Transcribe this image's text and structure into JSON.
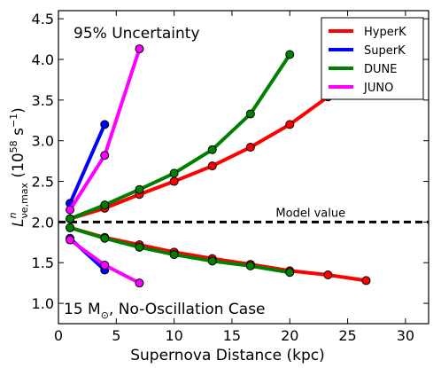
{
  "chart_data": {
    "type": "line",
    "xlabel": "Supernova Distance (kpc)",
    "ylabel": "L^n_{νe,max} (10^58 s^-1)",
    "xlim": [
      0,
      32
    ],
    "ylim": [
      0.75,
      4.6
    ],
    "xticks": [
      0,
      5,
      10,
      15,
      20,
      25,
      30
    ],
    "yticks": [
      1.0,
      1.5,
      2.0,
      2.5,
      3.0,
      3.5,
      4.0,
      4.5
    ],
    "xtick_labels": [
      "0",
      "5",
      "10",
      "15",
      "20",
      "25",
      "30"
    ],
    "ytick_labels": [
      "1.0",
      "1.5",
      "2.0",
      "2.5",
      "3.0",
      "3.5",
      "4.0",
      "4.5"
    ],
    "ylabel_parts": {
      "main": "L",
      "sup": "n",
      "sub": "νe,max",
      "unit": "(10",
      "unit_exp": "58",
      "unit_rest": "s",
      "unit_rest_exp": "−1",
      "close": ")"
    },
    "annotations": {
      "top_left": "95% Uncertainty",
      "bottom_left_main": "15 M",
      "bottom_left_sub": "⊙",
      "bottom_left_rest": ", No-Oscillation Case",
      "reference_line": "Model value"
    },
    "reference_value": 2.0,
    "legend_position": "top-right",
    "series": [
      {
        "name": "HyperK",
        "color": "#ff0000",
        "upper": {
          "x": [
            1.0,
            4.0,
            7.0,
            10.0,
            13.3,
            16.6,
            20.0,
            23.3,
            26.6
          ],
          "y": [
            2.04,
            2.17,
            2.34,
            2.5,
            2.69,
            2.92,
            3.2,
            3.54,
            null
          ]
        },
        "lower": {
          "x": [
            1.0,
            4.0,
            7.0,
            10.0,
            13.3,
            16.6,
            20.0,
            23.3,
            26.6
          ],
          "y": [
            1.93,
            1.81,
            1.72,
            1.63,
            1.55,
            1.48,
            1.4,
            1.35,
            1.28
          ]
        }
      },
      {
        "name": "SuperK",
        "color": "#0000ff",
        "upper": {
          "x": [
            1.0,
            4.0
          ],
          "y": [
            2.23,
            3.2
          ]
        },
        "lower": {
          "x": [
            1.0,
            4.0
          ],
          "y": [
            1.8,
            1.41
          ]
        }
      },
      {
        "name": "DUNE",
        "color": "#008000",
        "upper": {
          "x": [
            1.0,
            4.0,
            7.0,
            10.0,
            13.3,
            16.6,
            20.0
          ],
          "y": [
            2.04,
            2.21,
            2.4,
            2.6,
            2.89,
            3.33,
            4.06
          ]
        },
        "lower": {
          "x": [
            1.0,
            4.0,
            7.0,
            10.0,
            13.3,
            16.6,
            20.0
          ],
          "y": [
            1.93,
            1.8,
            1.69,
            1.6,
            1.52,
            1.46,
            1.38
          ]
        }
      },
      {
        "name": "JUNO",
        "color": "#ff00ff",
        "upper": {
          "x": [
            1.0,
            4.0,
            7.0
          ],
          "y": [
            2.15,
            2.82,
            4.13
          ]
        },
        "lower": {
          "x": [
            1.0,
            4.0,
            7.0
          ],
          "y": [
            1.78,
            1.47,
            1.25
          ]
        }
      }
    ]
  }
}
